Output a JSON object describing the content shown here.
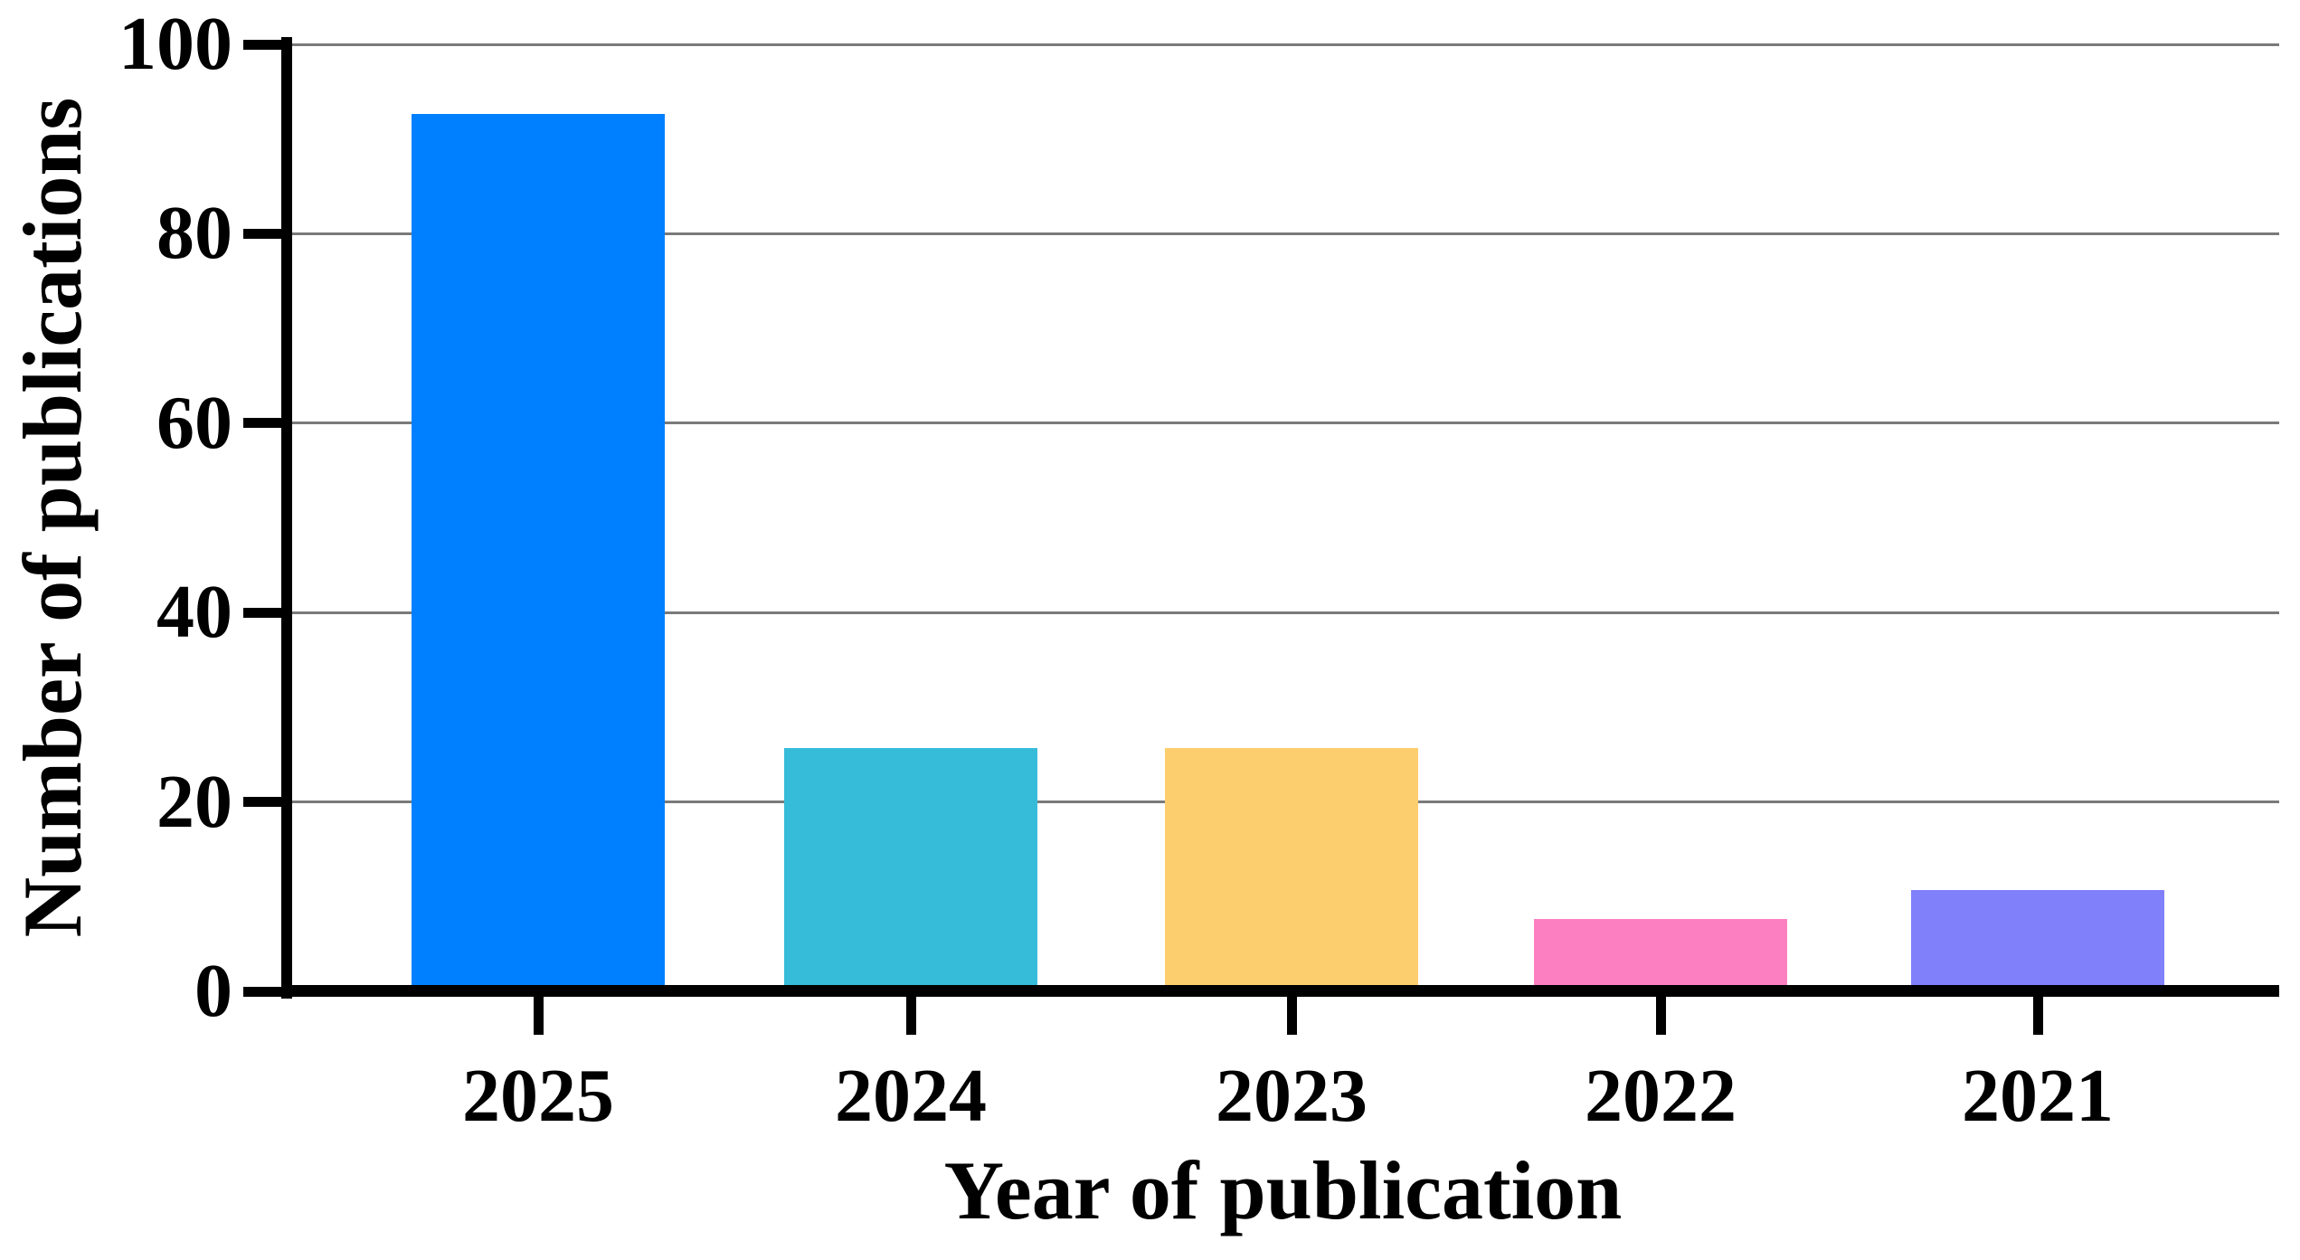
{
  "figure": {
    "kind": "static-bar-chart-figure"
  },
  "chart_data": {
    "type": "bar",
    "title": "",
    "xlabel": "Year of publication",
    "ylabel": "Number of publications",
    "categories": [
      "2025",
      "2024",
      "2023",
      "2022",
      "2021"
    ],
    "values": [
      92,
      25,
      25,
      7,
      10
    ],
    "bar_colors": [
      "#0080FE",
      "#36BCD9",
      "#FDCE6E",
      "#FC80C1",
      "#8080FA"
    ],
    "yticks": [
      0,
      20,
      40,
      60,
      80,
      100
    ],
    "ytick_labels": [
      "0",
      "20",
      "40",
      "60",
      "80",
      "100"
    ],
    "ylim": [
      0,
      100
    ],
    "grid": "horizontal",
    "gridline_color": "#7A7A7A",
    "axis_color": "#000000",
    "background_color": "#FFFFFF",
    "legend": "none"
  }
}
